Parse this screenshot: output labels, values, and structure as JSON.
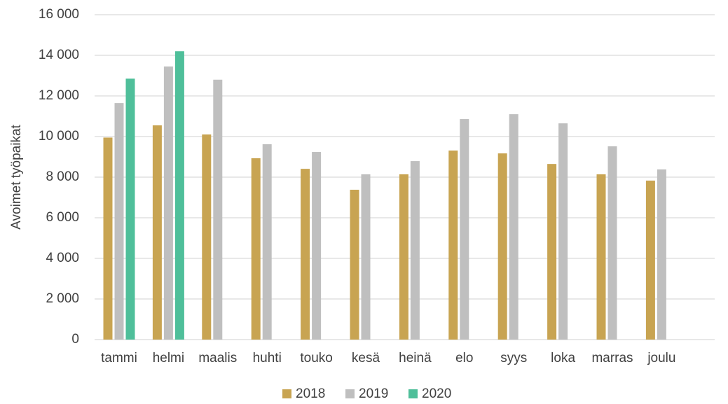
{
  "chart_data": {
    "type": "bar",
    "y_label": "Avoimet työpaikat",
    "categories": [
      "tammi",
      "helmi",
      "maalis",
      "huhti",
      "touko",
      "kesä",
      "heinä",
      "elo",
      "syys",
      "loka",
      "marras",
      "joulu"
    ],
    "series": [
      {
        "name": "2018",
        "color": "#c8a452",
        "values": [
          9950,
          10550,
          10100,
          8930,
          8410,
          7380,
          8140,
          9310,
          9170,
          8650,
          8140,
          7830
        ]
      },
      {
        "name": "2019",
        "color": "#bfbfbf",
        "values": [
          11650,
          13450,
          12800,
          9620,
          9240,
          8140,
          8790,
          10860,
          11100,
          10650,
          9520,
          8380
        ]
      },
      {
        "name": "2020",
        "color": "#4fbf9a",
        "values": [
          12850,
          14200,
          null,
          null,
          null,
          null,
          null,
          null,
          null,
          null,
          null,
          null
        ]
      }
    ],
    "ylim": [
      0,
      16000
    ],
    "yticks": [
      0,
      {
        "value": 2000,
        "label": "2 000"
      },
      {
        "value": 4000,
        "label": "4 000"
      },
      {
        "value": 6000,
        "label": "6 000"
      },
      {
        "value": 8000,
        "label": "8 000"
      },
      {
        "value": 10000,
        "label": "10 000"
      },
      {
        "value": 12000,
        "label": "12 000"
      },
      {
        "value": 14000,
        "label": "14 000"
      },
      {
        "value": 16000,
        "label": "16 000"
      }
    ],
    "grid": true,
    "legend": "bottom"
  }
}
